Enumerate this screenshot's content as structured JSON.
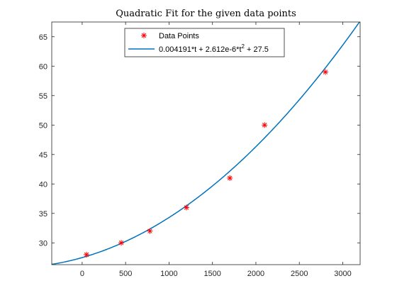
{
  "chart_data": {
    "type": "scatter",
    "title": "Quadratic Fit for the given data points",
    "xlabel": "",
    "ylabel": "",
    "xlim": [
      -350,
      3200
    ],
    "ylim": [
      26.3,
      67.5
    ],
    "xticks": [
      0,
      500,
      1000,
      1500,
      2000,
      2500,
      3000
    ],
    "yticks": [
      30,
      35,
      40,
      45,
      50,
      55,
      60,
      65
    ],
    "grid": false,
    "legend_position": "top-center",
    "series": [
      {
        "name": "Data Points",
        "kind": "scatter",
        "marker": "asterisk",
        "color": "#ff0000",
        "points": [
          {
            "x": 50,
            "y": 28
          },
          {
            "x": 450,
            "y": 30
          },
          {
            "x": 780,
            "y": 32
          },
          {
            "x": 1200,
            "y": 36
          },
          {
            "x": 1700,
            "y": 41
          },
          {
            "x": 2100,
            "y": 50
          },
          {
            "x": 2800,
            "y": 59
          }
        ]
      },
      {
        "name": "0.004191*t + 2.612e-6*t",
        "name_superscript": "2",
        "name_suffix": " + 27.5",
        "kind": "line",
        "color": "#0072bd",
        "coefficients": {
          "a": 2.612e-06,
          "b": 0.004191,
          "c": 27.5
        }
      }
    ]
  }
}
